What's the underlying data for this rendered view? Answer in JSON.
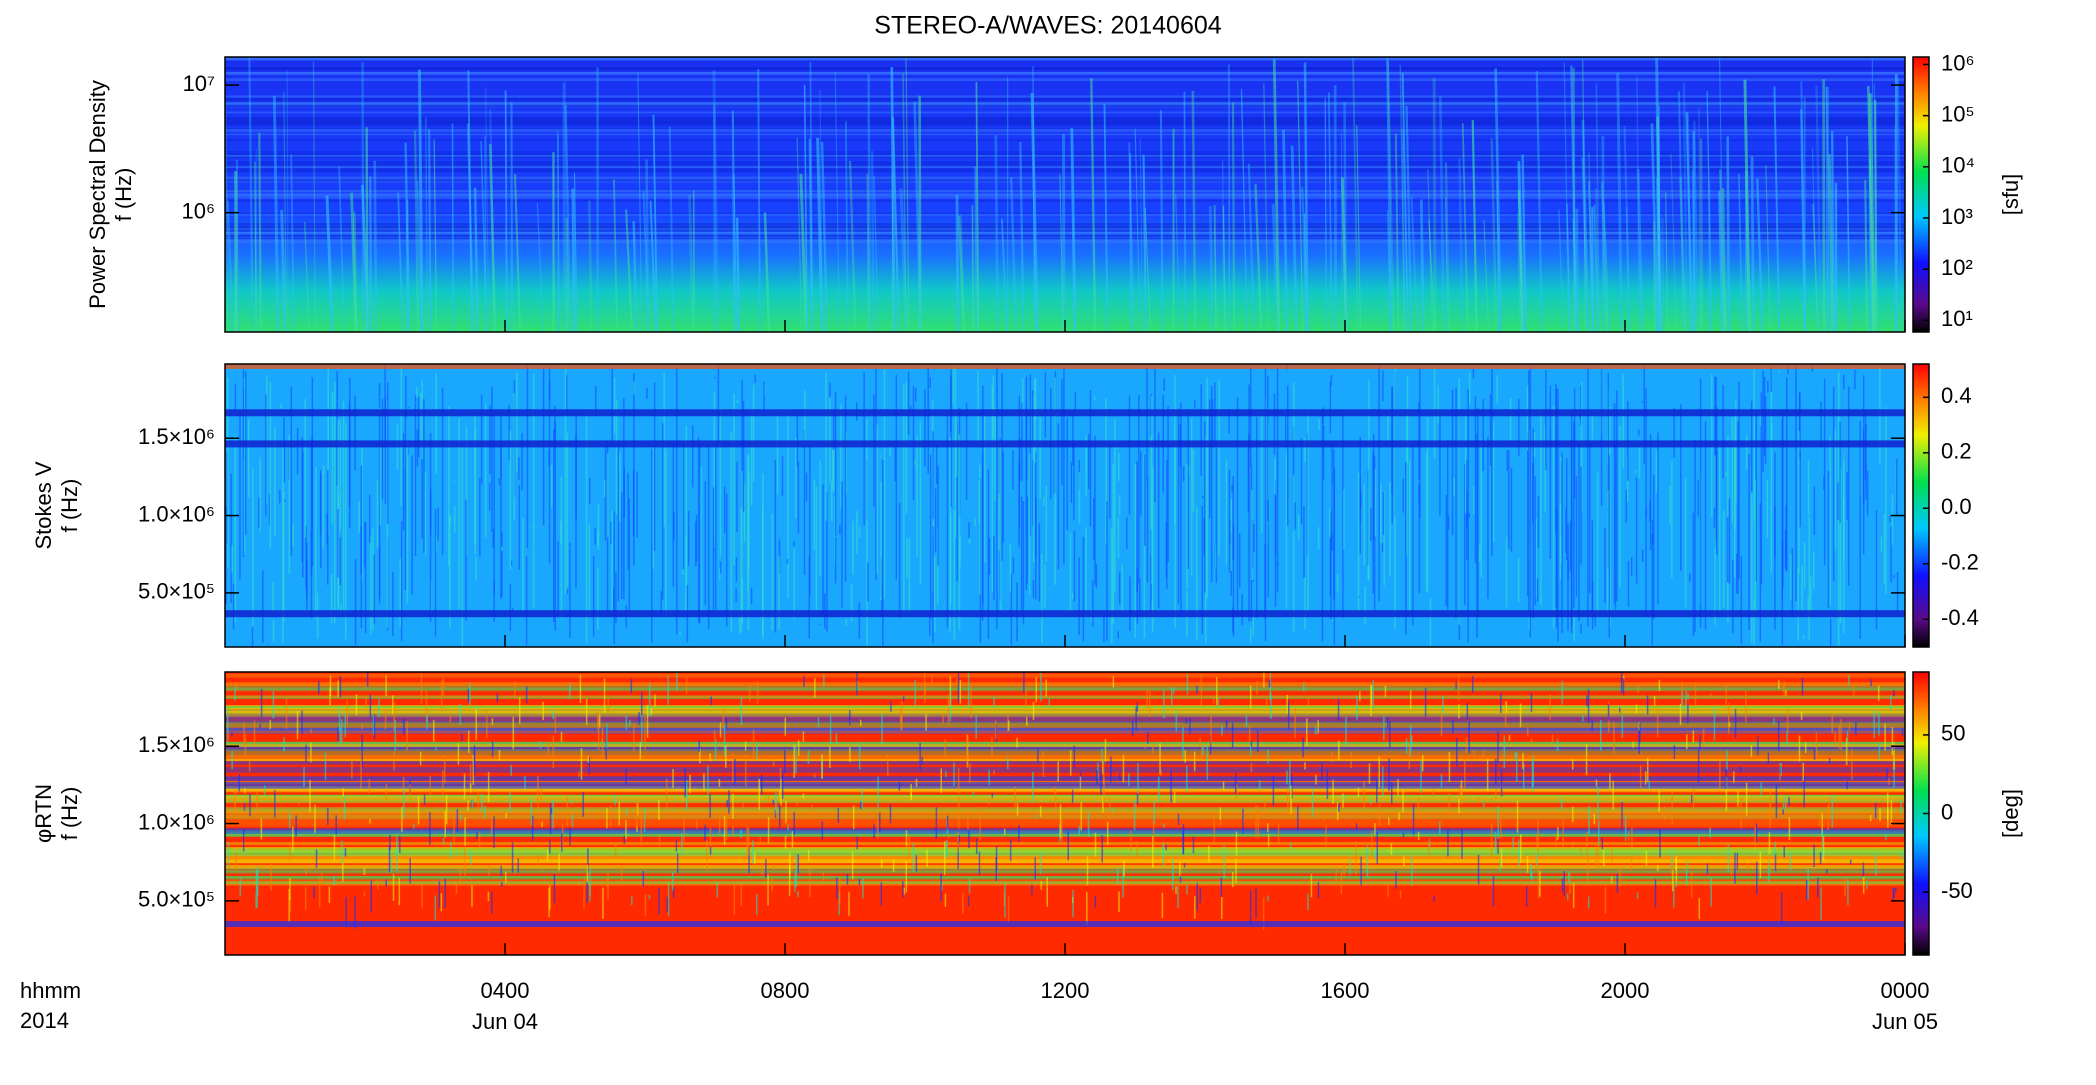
{
  "chart_data": [
    {
      "type": "spectrogram",
      "title": "STEREO-A/WAVES: 20140604",
      "ylabel": [
        "Power Spectral Density",
        "f (Hz)"
      ],
      "ylog": true,
      "ylim": [
        116000,
        16600000
      ],
      "yticks": [
        {
          "value": 1000000,
          "label": "10⁶"
        },
        {
          "value": 10000000,
          "label": "10⁷"
        }
      ],
      "xlim": [
        0,
        24
      ],
      "colorbar": {
        "log": true,
        "zlim": [
          5.9,
          1400000
        ],
        "label": "[sfu]",
        "zticks": [
          {
            "value": 10,
            "label": "10¹"
          },
          {
            "value": 100,
            "label": "10²"
          },
          {
            "value": 1000,
            "label": "10³"
          },
          {
            "value": 10000,
            "label": "10⁴"
          },
          {
            "value": 100000,
            "label": "10⁵"
          },
          {
            "value": 1000000,
            "label": "10⁶"
          }
        ]
      }
    },
    {
      "type": "spectrogram",
      "ylabel": [
        "Stokes V",
        "f (Hz)"
      ],
      "ylog": false,
      "ylim": [
        150000,
        1980000
      ],
      "yticks": [
        {
          "value": 500000,
          "label": "5.0×10⁵"
        },
        {
          "value": 1000000,
          "label": "1.0×10⁶"
        },
        {
          "value": 1500000,
          "label": "1.5×10⁶"
        }
      ],
      "xlim": [
        0,
        24
      ],
      "colorbar": {
        "log": false,
        "zlim": [
          -0.5,
          0.52
        ],
        "zticks": [
          -0.4,
          -0.2,
          {
            "value": 0,
            "label": "0.0"
          },
          0.2,
          0.4
        ]
      }
    },
    {
      "type": "spectrogram",
      "ylabel": [
        "φRTN",
        "f (Hz)"
      ],
      "ylog": false,
      "ylim": [
        150000,
        1980000
      ],
      "yticks": [
        {
          "value": 500000,
          "label": "5.0×10⁵"
        },
        {
          "value": 1000000,
          "label": "1.0×10⁶"
        },
        {
          "value": 1500000,
          "label": "1.5×10⁶"
        }
      ],
      "xlim": [
        0,
        24
      ],
      "xlabel": [
        "hhmm",
        "2014"
      ],
      "xticks": [
        {
          "value": 4,
          "label": "0400"
        },
        {
          "value": 8,
          "label": "0800"
        },
        {
          "value": 12,
          "label": "1200"
        },
        {
          "value": 16,
          "label": "1600"
        },
        {
          "value": 20,
          "label": "2000"
        },
        {
          "value": 24,
          "label": "0000"
        }
      ],
      "xtick_dates": [
        {
          "value": 4,
          "label": "Jun 04"
        },
        {
          "value": 24,
          "label": "Jun 05"
        }
      ],
      "colorbar": {
        "log": false,
        "zlim": [
          -90,
          90
        ],
        "label": "[deg]",
        "zticks": [
          -50,
          0,
          50
        ]
      }
    }
  ]
}
